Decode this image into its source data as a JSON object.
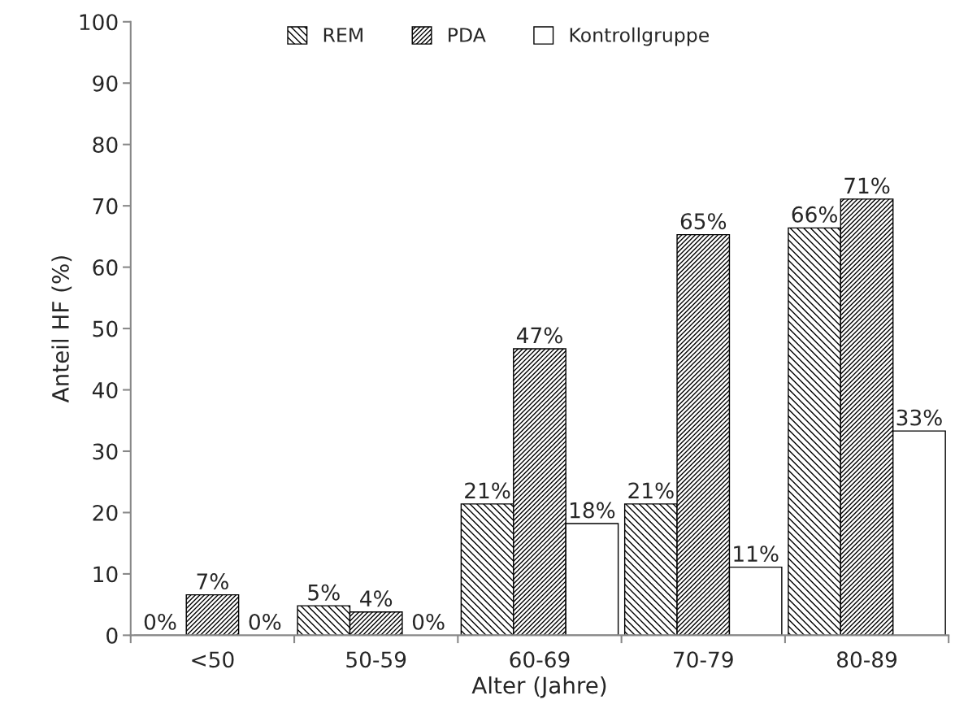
{
  "chart_data": {
    "type": "bar",
    "xlabel": "Alter (Jahre)",
    "ylabel": "Anteil HF (%)",
    "categories": [
      "<50",
      "50-59",
      "60-69",
      "70-79",
      "80-89"
    ],
    "series": [
      {
        "name": "REM",
        "color": "#000000",
        "values": [
          0,
          4.8,
          21.4,
          21.4,
          66.4
        ],
        "value_labels": [
          "0%",
          "5%",
          "21%",
          "21%",
          "66%"
        ]
      },
      {
        "name": "PDA",
        "color": "#000000",
        "values": [
          6.6,
          3.8,
          46.7,
          65.3,
          71.1
        ],
        "value_labels": [
          "7%",
          "4%",
          "47%",
          "65%",
          "71%"
        ]
      },
      {
        "name": "Kontrollgruppe",
        "color": "#ffffff",
        "values": [
          0,
          0,
          18.2,
          11.1,
          33.3
        ],
        "value_labels": [
          "0%",
          "0%",
          "18%",
          "11%",
          "33%"
        ]
      }
    ],
    "ylim": [
      0,
      100
    ],
    "yticks": [
      0,
      10,
      20,
      30,
      40,
      50,
      60,
      70,
      80,
      90,
      100
    ],
    "grid": false,
    "legend": "top"
  }
}
